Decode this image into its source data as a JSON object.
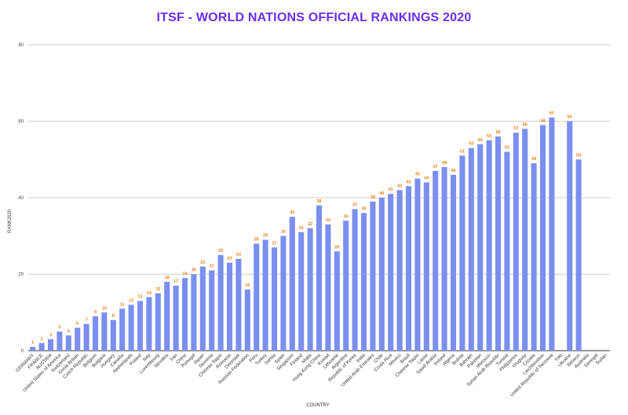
{
  "chart_data": {
    "type": "bar",
    "title": "ITSF - WORLD NATIONS OFFICIAL RANKINGS 2020",
    "xlabel": "COUNTRY",
    "ylabel": "RANK2020",
    "ylim": [
      0,
      80
    ],
    "yticks": [
      "0",
      "20",
      "40",
      "60",
      "80"
    ],
    "grid": true,
    "bar_color": "#7b8ff0",
    "label_color": "#f07d12",
    "categories": [
      "GERMANY",
      "FRANCE",
      "AUSTRIA",
      "United States of America",
      "Switzerland",
      "Great Britain",
      "Czech Republic",
      "Belgium",
      "Bulgaria",
      "Hungary",
      "Canada",
      "Netherlands",
      "Poland",
      "Italy",
      "Luxembourg",
      "Slovakia",
      "Iran",
      "China",
      "Portugal",
      "Japan",
      "Slovenia",
      "Chinese Taipei",
      "Romania",
      "Denmark",
      "Russian Federation",
      "Peru",
      "Turkey",
      "Serbia",
      "Spain",
      "Singapore",
      "Finland",
      "Malta",
      "Hong Kong China",
      "Kuwait",
      "Lithuania",
      "Argentina",
      "Republic of Korea",
      "India",
      "United Arab Emirates",
      "Chile",
      "Costa Rica",
      "Mexico",
      "Brazil",
      "Chinese Taipei",
      "Latvia",
      "Saudi Arabia",
      "Ireland",
      "Algeria",
      "Bolivia",
      "Bahrain",
      "Pakistan",
      "Morocco",
      "Syrian Arab Republic",
      "Tunisia",
      "Philippines",
      "Uruguay",
      "Croatia",
      "Liechtenstein",
      "United Republic of Tanzania",
      "Iraq",
      "Ukraine",
      "Belarus",
      "Australia",
      "Senegal",
      "Sudan"
    ],
    "values": [
      1,
      2,
      3,
      5,
      4,
      6,
      7,
      9,
      10,
      8,
      11,
      12,
      13,
      14,
      15,
      18,
      17,
      19,
      20,
      22,
      21,
      25,
      23,
      24,
      16,
      28,
      29,
      27,
      30,
      35,
      31,
      32,
      38,
      33,
      26,
      34,
      37,
      36,
      39,
      40,
      41,
      42,
      43,
      45,
      44,
      47,
      48,
      46,
      51,
      53,
      54,
      55,
      56,
      52,
      57,
      58,
      49,
      59,
      61,
      null,
      60,
      50,
      null,
      null,
      null
    ],
    "data_labels": [
      "1",
      "2",
      "3",
      "5",
      "4",
      "6",
      "7",
      "9",
      "10",
      "8",
      "11",
      "12",
      "13",
      "14",
      "15",
      "18",
      "17",
      "19",
      "20",
      "22",
      "21",
      "25",
      "23",
      "24",
      "16",
      "28",
      "29",
      "27",
      "30",
      "35",
      "31",
      "32",
      "38",
      "33",
      "26",
      "34",
      "37",
      "36",
      "39",
      "40",
      "41",
      "42",
      "43",
      "45",
      "44",
      "47",
      "48",
      "46",
      "51",
      "53",
      "54",
      "55",
      "56",
      "52",
      "57",
      "58",
      "49",
      "59",
      "61",
      "",
      "60",
      "50",
      "",
      "",
      ""
    ]
  }
}
